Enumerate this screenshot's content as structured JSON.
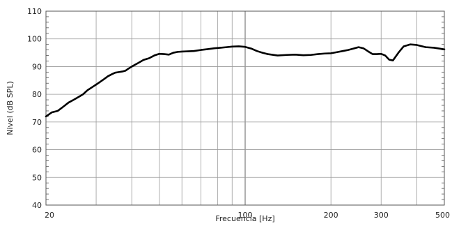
{
  "chart_data": {
    "type": "line",
    "title": "",
    "xlabel": "Frecuencia [Hz]",
    "ylabel": "Nivel (dB SPL)",
    "x_scale": "log",
    "xlim": [
      20,
      500
    ],
    "ylim": [
      40,
      110
    ],
    "grid": true,
    "x_ticks": [
      20,
      100,
      200,
      300,
      500
    ],
    "x_tick_labels": [
      "20",
      "100",
      "200",
      "300",
      "500"
    ],
    "x_gridlines": [
      20,
      30,
      40,
      50,
      60,
      70,
      80,
      90,
      100,
      200,
      300,
      400,
      500
    ],
    "y_ticks": [
      40,
      50,
      60,
      70,
      80,
      90,
      100,
      110
    ],
    "y_tick_labels": [
      "40",
      "50",
      "60",
      "70",
      "80",
      "90",
      "100",
      "110"
    ],
    "series": [
      {
        "color": "#000000",
        "x": [
          20,
          21,
          22,
          23,
          24,
          25,
          26,
          27,
          28,
          29,
          30,
          31,
          32,
          33,
          34,
          35,
          36,
          37,
          38,
          39,
          40,
          42,
          44,
          46,
          48,
          50,
          52,
          54,
          56,
          58,
          60,
          63,
          66,
          70,
          74,
          78,
          82,
          86,
          90,
          95,
          100,
          105,
          110,
          115,
          120,
          130,
          140,
          150,
          160,
          170,
          180,
          190,
          200,
          210,
          220,
          230,
          240,
          250,
          260,
          270,
          280,
          290,
          300,
          310,
          320,
          330,
          345,
          360,
          380,
          400,
          430,
          460,
          500
        ],
        "y": [
          72,
          73.5,
          74,
          75.5,
          77,
          78,
          79,
          80,
          81.5,
          82.5,
          83.5,
          84.5,
          85.5,
          86.5,
          87.2,
          87.8,
          88,
          88.2,
          88.5,
          89.3,
          90,
          91.2,
          92.4,
          93,
          94,
          94.6,
          94.5,
          94.3,
          95,
          95.3,
          95.4,
          95.5,
          95.6,
          96,
          96.3,
          96.6,
          96.8,
          97,
          97.2,
          97.3,
          97.1,
          96.5,
          95.6,
          95,
          94.5,
          94,
          94.2,
          94.3,
          94.1,
          94.2,
          94.5,
          94.7,
          94.8,
          95.2,
          95.6,
          96,
          96.5,
          97,
          96.6,
          95.5,
          94.5,
          94.5,
          94.6,
          94,
          92.5,
          92.2,
          95,
          97.3,
          98,
          97.8,
          97,
          96.8,
          96.2
        ]
      }
    ]
  }
}
